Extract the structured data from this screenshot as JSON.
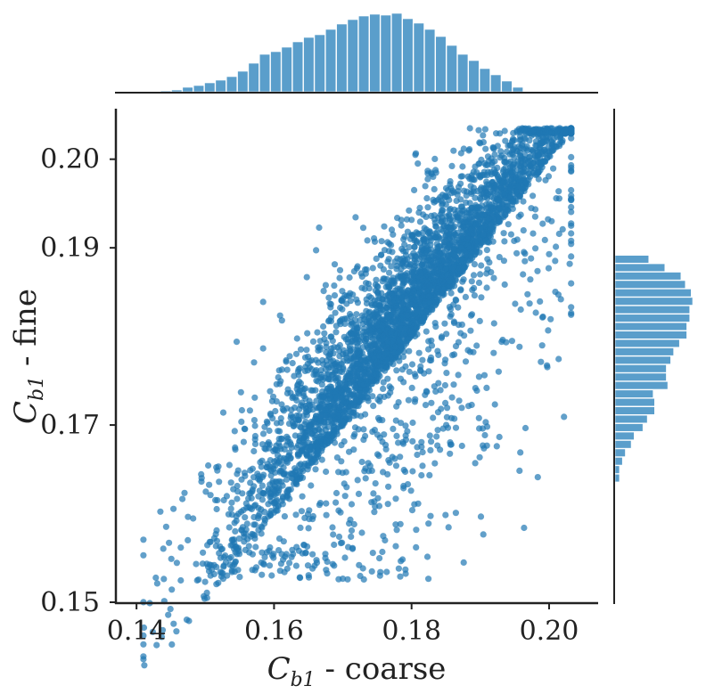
{
  "chart_data": {
    "type": "scatter",
    "title": "",
    "xlabel": "C_{b1} - coarse",
    "ylabel": "C_{b1} - fine",
    "xlabel_main": "C",
    "xlabel_sub": "b1",
    "xlabel_rest": " - coarse",
    "ylabel_main": "C",
    "ylabel_sub": "b1",
    "ylabel_rest": " - fine",
    "xlim": [
      0.137,
      0.207
    ],
    "ylim": [
      0.15,
      0.2055
    ],
    "xticks": [
      0.14,
      0.16,
      0.18,
      0.2
    ],
    "xtick_labels": [
      "0.14",
      "0.16",
      "0.18",
      "0.20"
    ],
    "yticks": [
      0.15,
      0.17,
      0.19,
      0.2
    ],
    "ytick_labels": [
      "0.15",
      "0.17",
      "0.19",
      "0.20"
    ],
    "grid": false,
    "legend": "none",
    "color": "#1f77b4",
    "hist_color": "#5a9ecb",
    "marginal_x": {
      "bin_start": 0.1435,
      "bin_width": 0.0016,
      "counts": [
        1,
        2,
        5,
        7,
        10,
        13,
        17,
        23,
        32,
        42,
        45,
        50,
        56,
        61,
        64,
        70,
        76,
        81,
        85,
        87,
        86,
        88,
        82,
        77,
        70,
        62,
        52,
        42,
        35,
        26,
        19,
        12,
        5
      ]
    },
    "marginal_y": {
      "bin_start": 0.1635,
      "bin_width": 0.00095,
      "counts": [
        3,
        3,
        5,
        7,
        11,
        13,
        19,
        22,
        27,
        27,
        26,
        36,
        35,
        35,
        38,
        40,
        44,
        49,
        49,
        51,
        51,
        53,
        52,
        48,
        45,
        34,
        23
      ],
      "counts_order": "bottom-to-top"
    },
    "points_summary": "approx. 4000 points; dense wedge bounded below by y = x, extra sparse points scattered below the diagonal",
    "points_generator": {
      "n": 4200,
      "seed": 7
    }
  }
}
